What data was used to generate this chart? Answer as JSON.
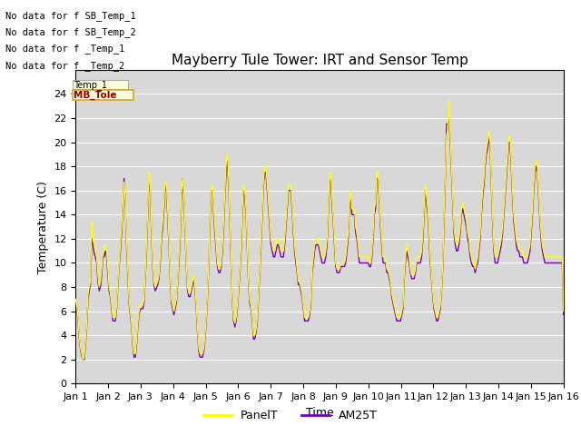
{
  "title": "Mayberry Tule Tower: IRT and Sensor Temp",
  "xlabel": "Time",
  "ylabel": "Temperature (C)",
  "ylim": [
    0,
    26
  ],
  "xlim": [
    0,
    15
  ],
  "xtick_labels": [
    "Jan 1",
    "Jan 2",
    "Jan 3",
    "Jan 4",
    "Jan 5",
    "Jan 6",
    "Jan 7",
    "Jan 8",
    "Jan 9",
    "Jan 10",
    "Jan 11",
    "Jan 12",
    "Jan 13",
    "Jan 14",
    "Jan 15",
    "Jan 16"
  ],
  "ytick_vals": [
    0,
    2,
    4,
    6,
    8,
    10,
    12,
    14,
    16,
    18,
    20,
    22,
    24
  ],
  "panel_color": "yellow",
  "am25_color": "#7700bb",
  "legend_entries": [
    "PanelT",
    "AM25T"
  ],
  "no_data_texts": [
    "No data for f SB_Temp_1",
    "No data for f SB_Temp_2",
    "No data for f _Temp_1",
    "No data for f _Temp_2"
  ],
  "background_color": "#d8d8d8",
  "grid_color": "white",
  "title_fontsize": 11,
  "axis_label_fontsize": 9,
  "tick_fontsize": 8,
  "tooltip_box1_text": "Temp_1",
  "tooltip_box2_text": "MB_Tole",
  "panel_t": [
    7.0,
    6.5,
    5.5,
    4.0,
    3.0,
    2.5,
    2.0,
    2.2,
    3.5,
    5.0,
    7.5,
    8.0,
    8.5,
    13.5,
    12.5,
    11.5,
    11.0,
    10.5,
    9.0,
    8.0,
    8.5,
    9.5,
    11.0,
    11.0,
    11.5,
    11.0,
    9.5,
    8.0,
    7.5,
    6.5,
    5.5,
    5.5,
    5.5,
    6.5,
    8.5,
    10.0,
    11.5,
    13.0,
    15.0,
    16.7,
    15.0,
    12.0,
    9.5,
    7.0,
    6.0,
    5.0,
    3.5,
    2.5,
    2.5,
    3.5,
    5.0,
    6.0,
    6.5,
    6.5,
    6.5,
    7.0,
    9.0,
    11.5,
    14.5,
    17.5,
    16.5,
    13.0,
    10.0,
    8.5,
    8.0,
    8.2,
    8.5,
    9.0,
    10.5,
    12.5,
    13.5,
    15.0,
    16.7,
    16.5,
    14.5,
    12.0,
    9.0,
    7.0,
    6.5,
    6.0,
    6.5,
    7.0,
    8.5,
    10.5,
    12.5,
    15.5,
    17.0,
    16.0,
    13.0,
    10.0,
    8.0,
    7.5,
    7.5,
    8.0,
    8.5,
    9.0,
    8.0,
    6.5,
    4.5,
    3.0,
    2.5,
    2.5,
    2.5,
    3.0,
    4.0,
    5.5,
    7.5,
    10.0,
    14.0,
    16.0,
    16.5,
    14.5,
    13.0,
    11.5,
    10.0,
    9.5,
    9.5,
    10.0,
    11.5,
    13.5,
    16.0,
    18.5,
    19.0,
    17.0,
    13.5,
    10.0,
    7.0,
    5.5,
    5.0,
    5.5,
    6.5,
    8.0,
    9.5,
    11.5,
    14.5,
    16.5,
    16.0,
    14.5,
    11.5,
    8.5,
    7.0,
    6.5,
    5.5,
    4.0,
    4.0,
    4.5,
    5.5,
    7.5,
    9.5,
    12.0,
    14.5,
    17.0,
    18.0,
    18.0,
    16.5,
    15.0,
    13.5,
    12.0,
    11.5,
    11.0,
    11.0,
    11.5,
    12.0,
    12.0,
    11.5,
    11.0,
    11.0,
    11.0,
    12.0,
    13.5,
    15.0,
    16.5,
    16.5,
    16.5,
    15.0,
    13.0,
    11.5,
    10.5,
    9.5,
    8.5,
    8.5,
    8.0,
    7.5,
    6.5,
    5.5,
    5.5,
    5.5,
    5.5,
    6.0,
    7.0,
    9.5,
    10.5,
    11.5,
    12.0,
    12.0,
    12.0,
    11.5,
    11.0,
    10.5,
    10.5,
    10.5,
    11.0,
    12.0,
    14.5,
    17.0,
    17.5,
    15.5,
    14.0,
    12.0,
    10.0,
    9.5,
    9.5,
    9.5,
    10.0,
    10.0,
    10.0,
    10.0,
    10.5,
    11.5,
    12.5,
    15.0,
    16.0,
    14.5,
    14.5,
    14.5,
    13.0,
    12.5,
    11.5,
    10.5,
    10.5,
    10.5,
    10.5,
    10.5,
    10.5,
    10.5,
    10.5,
    10.0,
    10.0,
    11.0,
    12.5,
    14.5,
    15.0,
    17.5,
    17.5,
    15.5,
    13.5,
    12.0,
    10.5,
    10.5,
    10.5,
    9.5,
    9.5,
    9.0,
    8.5,
    7.5,
    7.0,
    6.5,
    6.0,
    5.5,
    5.5,
    5.5,
    5.5,
    6.0,
    6.5,
    9.0,
    10.5,
    11.5,
    11.0,
    10.5,
    9.5,
    9.0,
    9.0,
    9.0,
    9.5,
    10.5,
    10.5,
    10.5,
    10.5,
    11.0,
    12.5,
    14.5,
    16.5,
    15.5,
    14.5,
    12.5,
    10.5,
    9.0,
    7.5,
    6.5,
    6.0,
    5.5,
    5.5,
    6.0,
    6.5,
    8.0,
    10.0,
    14.0,
    17.5,
    20.5,
    21.0,
    23.5,
    20.5,
    18.0,
    15.5,
    13.0,
    12.0,
    11.5,
    11.5,
    12.0,
    13.0,
    14.5,
    15.0,
    14.5,
    14.0,
    13.5,
    12.5,
    12.0,
    11.0,
    10.5,
    10.0,
    10.0,
    9.5,
    10.0,
    10.5,
    11.5,
    12.5,
    14.5,
    16.0,
    17.0,
    18.5,
    19.5,
    20.0,
    21.0,
    20.0,
    17.0,
    14.0,
    11.5,
    10.5,
    10.5,
    10.5,
    11.0,
    11.5,
    12.0,
    13.0,
    14.5,
    16.0,
    17.5,
    19.0,
    20.5,
    20.5,
    18.5,
    16.0,
    14.0,
    13.0,
    12.0,
    11.5,
    11.5,
    11.0,
    11.0,
    11.0,
    10.5,
    10.5,
    10.5,
    10.5,
    11.0,
    11.5,
    13.0,
    14.5,
    16.5,
    18.0,
    18.5,
    18.0,
    16.0,
    14.0,
    12.5,
    11.5,
    11.0,
    10.5,
    10.5,
    10.5,
    10.5,
    10.5,
    10.5,
    10.5,
    10.5,
    10.5,
    10.5,
    10.5,
    10.5,
    10.5,
    10.5,
    10.5,
    6.0
  ],
  "am25_t": [
    6.8,
    6.3,
    5.3,
    3.8,
    2.8,
    2.3,
    2.0,
    2.0,
    3.2,
    4.8,
    7.0,
    7.7,
    8.2,
    12.0,
    11.5,
    10.8,
    10.5,
    10.0,
    8.5,
    7.7,
    8.0,
    9.0,
    10.5,
    10.5,
    11.0,
    10.5,
    9.0,
    7.7,
    7.2,
    6.2,
    5.2,
    5.2,
    5.2,
    6.2,
    8.2,
    9.7,
    11.0,
    12.5,
    14.5,
    17.0,
    14.8,
    11.5,
    9.0,
    6.7,
    5.7,
    4.7,
    3.2,
    2.2,
    2.2,
    3.2,
    4.7,
    5.7,
    6.2,
    6.2,
    6.2,
    6.7,
    8.7,
    11.0,
    14.0,
    17.0,
    16.0,
    12.5,
    9.7,
    8.2,
    7.7,
    7.9,
    8.2,
    8.7,
    10.0,
    12.0,
    13.0,
    14.5,
    16.5,
    16.0,
    14.0,
    11.5,
    8.7,
    6.7,
    6.2,
    5.7,
    6.2,
    6.7,
    8.2,
    10.0,
    12.0,
    15.0,
    17.0,
    15.5,
    12.5,
    9.7,
    7.7,
    7.2,
    7.2,
    7.7,
    8.2,
    8.7,
    7.7,
    6.2,
    4.2,
    2.7,
    2.2,
    2.2,
    2.2,
    2.7,
    3.7,
    5.2,
    7.2,
    9.7,
    13.5,
    16.0,
    16.0,
    14.0,
    12.5,
    11.0,
    9.7,
    9.2,
    9.2,
    9.7,
    11.0,
    13.0,
    15.5,
    17.5,
    18.5,
    16.5,
    13.0,
    9.7,
    6.7,
    5.2,
    4.7,
    5.2,
    6.2,
    7.7,
    9.2,
    11.0,
    14.0,
    16.0,
    15.5,
    14.0,
    11.0,
    8.2,
    6.7,
    6.2,
    5.2,
    3.7,
    3.7,
    4.2,
    5.2,
    7.2,
    9.2,
    11.5,
    14.0,
    16.5,
    17.5,
    17.5,
    16.0,
    14.5,
    13.0,
    11.5,
    11.0,
    10.5,
    10.5,
    11.0,
    11.5,
    11.5,
    11.0,
    10.5,
    10.5,
    10.5,
    11.5,
    13.0,
    14.5,
    16.0,
    16.0,
    16.0,
    14.5,
    12.5,
    11.0,
    10.0,
    9.2,
    8.2,
    8.2,
    7.7,
    7.2,
    6.2,
    5.2,
    5.2,
    5.2,
    5.2,
    5.7,
    6.7,
    9.2,
    10.0,
    11.0,
    11.5,
    11.5,
    11.5,
    11.0,
    10.5,
    10.0,
    10.0,
    10.0,
    10.5,
    11.5,
    14.0,
    16.5,
    17.0,
    15.0,
    13.5,
    11.5,
    9.7,
    9.2,
    9.2,
    9.2,
    9.7,
    9.7,
    9.7,
    9.7,
    10.0,
    11.0,
    12.0,
    14.5,
    15.5,
    14.0,
    14.0,
    14.0,
    12.5,
    12.0,
    11.0,
    10.0,
    10.0,
    10.0,
    10.0,
    10.0,
    10.0,
    10.0,
    10.0,
    9.7,
    9.7,
    10.5,
    12.0,
    14.0,
    14.5,
    17.0,
    17.0,
    15.0,
    13.0,
    11.5,
    10.0,
    10.0,
    10.0,
    9.2,
    9.2,
    8.7,
    8.2,
    7.2,
    6.7,
    6.2,
    5.7,
    5.2,
    5.2,
    5.2,
    5.2,
    5.7,
    6.2,
    8.7,
    10.0,
    11.0,
    10.5,
    10.0,
    9.2,
    8.7,
    8.7,
    8.7,
    9.2,
    10.0,
    10.0,
    10.0,
    10.0,
    10.5,
    12.0,
    14.0,
    16.0,
    15.0,
    14.0,
    12.0,
    10.0,
    8.7,
    7.2,
    6.2,
    5.7,
    5.2,
    5.2,
    5.7,
    6.2,
    7.7,
    9.7,
    13.5,
    17.0,
    21.5,
    21.5,
    22.0,
    20.0,
    17.5,
    15.0,
    12.5,
    11.5,
    11.0,
    11.0,
    11.5,
    12.5,
    14.0,
    14.5,
    14.0,
    13.5,
    13.0,
    12.0,
    11.5,
    10.5,
    10.0,
    9.7,
    9.7,
    9.2,
    9.7,
    10.0,
    11.0,
    12.0,
    14.0,
    15.5,
    16.5,
    18.0,
    19.0,
    19.5,
    20.5,
    19.5,
    16.5,
    13.5,
    11.0,
    10.0,
    10.0,
    10.0,
    10.5,
    11.0,
    11.5,
    12.5,
    14.0,
    15.5,
    17.0,
    18.5,
    20.0,
    20.0,
    18.0,
    15.5,
    13.5,
    12.5,
    11.5,
    11.0,
    11.0,
    10.5,
    10.5,
    10.5,
    10.0,
    10.0,
    10.0,
    10.0,
    10.5,
    11.0,
    12.5,
    14.0,
    16.0,
    17.5,
    18.0,
    17.5,
    15.5,
    13.5,
    12.0,
    11.0,
    10.5,
    10.0,
    10.0,
    10.0,
    10.0,
    10.0,
    10.0,
    10.0,
    10.0,
    10.0,
    10.0,
    10.0,
    10.0,
    10.0,
    10.0,
    10.0,
    5.7
  ]
}
